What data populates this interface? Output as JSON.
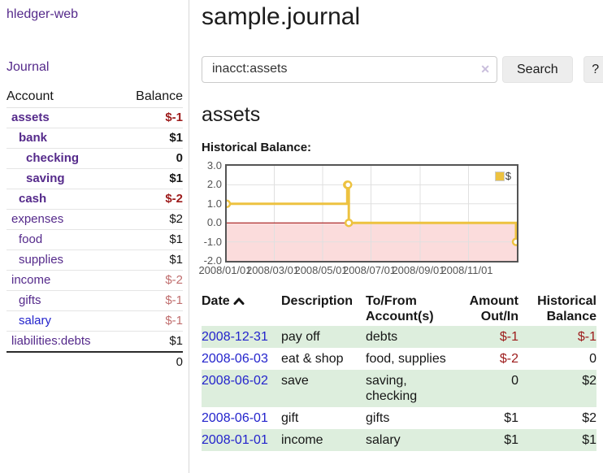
{
  "colors": {
    "link_purple": "#552a8b",
    "link_blue": "#2323cc",
    "negative": "#9d1b1b",
    "negative_muted": "#c06e6e",
    "row_stripe_green": "#ddeedd",
    "chart_line_gold": "#edc240"
  },
  "sidebar": {
    "app_title": "hledger-web",
    "nav": {
      "journal": "Journal"
    },
    "accounts_table": {
      "headers": {
        "account": "Account",
        "balance": "Balance"
      },
      "rows": [
        {
          "label": "assets",
          "indent": 0,
          "bold": true,
          "balance": "$-1",
          "balance_class": "negative"
        },
        {
          "label": "bank",
          "indent": 1,
          "bold": true,
          "balance": "$1",
          "balance_class": ""
        },
        {
          "label": "checking",
          "indent": 2,
          "bold": true,
          "balance": "0",
          "balance_class": ""
        },
        {
          "label": "saving",
          "indent": 2,
          "bold": true,
          "balance": "$1",
          "balance_class": ""
        },
        {
          "label": "cash",
          "indent": 1,
          "bold": true,
          "balance": "$-2",
          "balance_class": "negative"
        },
        {
          "label": "expenses",
          "indent": 0,
          "bold": false,
          "balance": "$2",
          "balance_class": ""
        },
        {
          "label": "food",
          "indent": 1,
          "bold": false,
          "balance": "$1",
          "balance_class": ""
        },
        {
          "label": "supplies",
          "indent": 1,
          "bold": false,
          "balance": "$1",
          "balance_class": ""
        },
        {
          "label": "income",
          "indent": 0,
          "bold": false,
          "balance": "$-2",
          "balance_class": "negative-muted"
        },
        {
          "label": "gifts",
          "indent": 1,
          "bold": false,
          "balance": "$-1",
          "balance_class": "negative-muted"
        },
        {
          "label": "salary",
          "indent": 1,
          "bold": false,
          "unvisited": true,
          "balance": "$-1",
          "balance_class": "negative-muted"
        },
        {
          "label": "liabilities:debts",
          "indent": 0,
          "bold": false,
          "balance": "$1",
          "balance_class": ""
        }
      ],
      "total": "0"
    }
  },
  "header": {
    "title": "sample.journal"
  },
  "search": {
    "value": "inacct:assets",
    "clear_label": "✕",
    "button": "Search",
    "help_button": "?"
  },
  "account_page": {
    "heading": "assets",
    "chart_heading": "Historical Balance:"
  },
  "chart_data": {
    "type": "line",
    "title": "Historical Balance",
    "step": true,
    "legend": "$",
    "legend_position": "top-right",
    "grid": true,
    "ylim": [
      -2.0,
      3.0
    ],
    "y_ticks": [
      "3.0",
      "2.0",
      "1.0",
      "0.0",
      "-1.0",
      "-2.0"
    ],
    "x_range": [
      "2008/01/01",
      "2009/01/01"
    ],
    "x_ticks": [
      "2008/01/01",
      "2008/03/01",
      "2008/05/01",
      "2008/07/01",
      "2008/09/01",
      "2008/11/01"
    ],
    "series": [
      {
        "name": "$",
        "points": [
          [
            "2008/01/01",
            1
          ],
          [
            "2008/06/01",
            2
          ],
          [
            "2008/06/02",
            2
          ],
          [
            "2008/06/03",
            0
          ],
          [
            "2008/12/31",
            -1
          ]
        ]
      }
    ],
    "colors": {
      "line": "#edc240",
      "marker_fill": "#ffffff",
      "negative_fill": "#fbdcdc",
      "zero_line": "#990000",
      "gridline": "#e0e0e0",
      "plot_border": "#545454",
      "tick_text": "#545454"
    }
  },
  "register": {
    "headers": {
      "date": "Date",
      "description": "Description",
      "accounts": "To/From Account(s)",
      "amount": "Amount Out/In",
      "balance": "Historical Balance"
    },
    "rows": [
      {
        "date": "2008-12-31",
        "description": "pay off",
        "accounts": "debts",
        "amount": "$-1",
        "amount_class": "negative",
        "balance": "$-1",
        "balance_class": "negative"
      },
      {
        "date": "2008-06-03",
        "description": "eat & shop",
        "accounts": "food, supplies",
        "amount": "$-2",
        "amount_class": "negative",
        "balance": "0",
        "balance_class": ""
      },
      {
        "date": "2008-06-02",
        "description": "save",
        "accounts": "saving, checking",
        "amount": "0",
        "amount_class": "",
        "balance": "$2",
        "balance_class": ""
      },
      {
        "date": "2008-06-01",
        "description": "gift",
        "accounts": "gifts",
        "amount": "$1",
        "amount_class": "",
        "balance": "$2",
        "balance_class": ""
      },
      {
        "date": "2008-01-01",
        "description": "income",
        "accounts": "salary",
        "amount": "$1",
        "amount_class": "",
        "balance": "$1",
        "balance_class": ""
      }
    ]
  }
}
